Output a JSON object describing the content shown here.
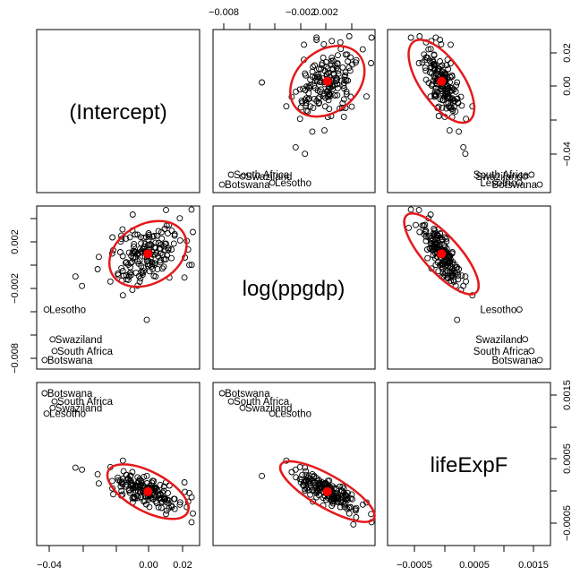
{
  "chart_data": {
    "type": "scatter",
    "variables": [
      "(Intercept)",
      "log(ppgdp)",
      "lifeExpF"
    ],
    "tick_labels": {
      "intercept": [
        "−0.04",
        "0.00",
        "0.02"
      ],
      "intercept_right": [
        "−0.04",
        "0.00",
        "0.02"
      ],
      "ppgdp": [
        "−0.008",
        "−0.002",
        "0.002"
      ],
      "ppgdp_left": [
        "−0.008",
        "−0.002",
        "0.002"
      ],
      "lifeExpF": [
        "−0.0005",
        "0.0005",
        "0.0015"
      ],
      "lifeExpF_right": [
        "−0.0005",
        "0.0005",
        "0.0015"
      ]
    },
    "ranges": {
      "intercept": [
        -0.056,
        0.026
      ],
      "ppgdp": [
        -0.0089,
        0.0037
      ],
      "lifeExpF": [
        -0.00085,
        0.00172
      ]
    },
    "labeled_points": [
      {
        "name": "Botswana",
        "intercept": -0.052,
        "ppgdp": -0.0082,
        "lifeExpF": 0.00155
      },
      {
        "name": "South Africa",
        "intercept": -0.047,
        "ppgdp": -0.0075,
        "lifeExpF": 0.00142
      },
      {
        "name": "Swaziland",
        "intercept": -0.048,
        "ppgdp": -0.0066,
        "lifeExpF": 0.00132
      },
      {
        "name": "Lesotho",
        "intercept": -0.051,
        "ppgdp": -0.0043,
        "lifeExpF": 0.00123
      }
    ],
    "ellipse": {
      "center": [
        0,
        0
      ],
      "color": "#e41a1c"
    },
    "center_point_color": "#ff0000"
  }
}
